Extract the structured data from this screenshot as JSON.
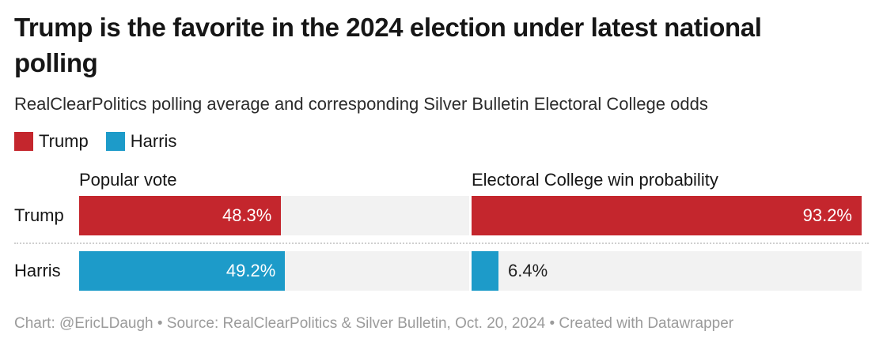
{
  "header": {
    "title": "Trump is the favorite in the 2024 election under latest national polling",
    "subtitle": "RealClearPolitics polling average and corresponding Silver Bulletin Electoral College odds"
  },
  "legend": {
    "trump": {
      "label": "Trump",
      "color": "#c4262d"
    },
    "harris": {
      "label": "Harris",
      "color": "#1d9bc9"
    }
  },
  "columns": {
    "popular": "Popular vote",
    "electoral": "Electoral College win probability"
  },
  "rows": {
    "trump_label": "Trump",
    "harris_label": "Harris"
  },
  "bars": {
    "trump_popular": {
      "value": 48.3,
      "label": "48.3%",
      "width_pct": 51.8,
      "color": "#c4262d",
      "label_inside": true
    },
    "trump_electoral": {
      "value": 93.2,
      "label": "93.2%",
      "width_pct": 100,
      "color": "#c4262d",
      "label_inside": true
    },
    "harris_popular": {
      "value": 49.2,
      "label": "49.2%",
      "width_pct": 52.8,
      "color": "#1d9bc9",
      "label_inside": true
    },
    "harris_electoral": {
      "value": 6.4,
      "label": "6.4%",
      "width_pct": 6.9,
      "color": "#1d9bc9",
      "label_inside": false
    }
  },
  "footer": {
    "credit": "Chart: @EricLDaugh • Source: RealClearPolitics & Silver Bulletin, Oct. 20, 2024 • Created with Datawrapper"
  },
  "chart_data": {
    "type": "bar",
    "orientation": "horizontal",
    "title": "Trump is the favorite in the 2024 election under latest national polling",
    "subtitle": "RealClearPolitics polling average and corresponding Silver Bulletin Electoral College odds",
    "categories": [
      "Trump",
      "Harris"
    ],
    "series": [
      {
        "name": "Popular vote",
        "values": [
          48.3,
          49.2
        ]
      },
      {
        "name": "Electoral College win probability",
        "values": [
          93.2,
          6.4
        ]
      }
    ],
    "value_suffix": "%",
    "xlim": [
      0,
      93.2
    ],
    "grid": false,
    "legend_position": "top-left",
    "colors": {
      "Trump": "#c4262d",
      "Harris": "#1d9bc9"
    },
    "track_color": "#f2f2f2",
    "source": "RealClearPolitics & Silver Bulletin, Oct. 20, 2024",
    "credit": "Chart: @EricLDaugh",
    "tool": "Created with Datawrapper"
  }
}
